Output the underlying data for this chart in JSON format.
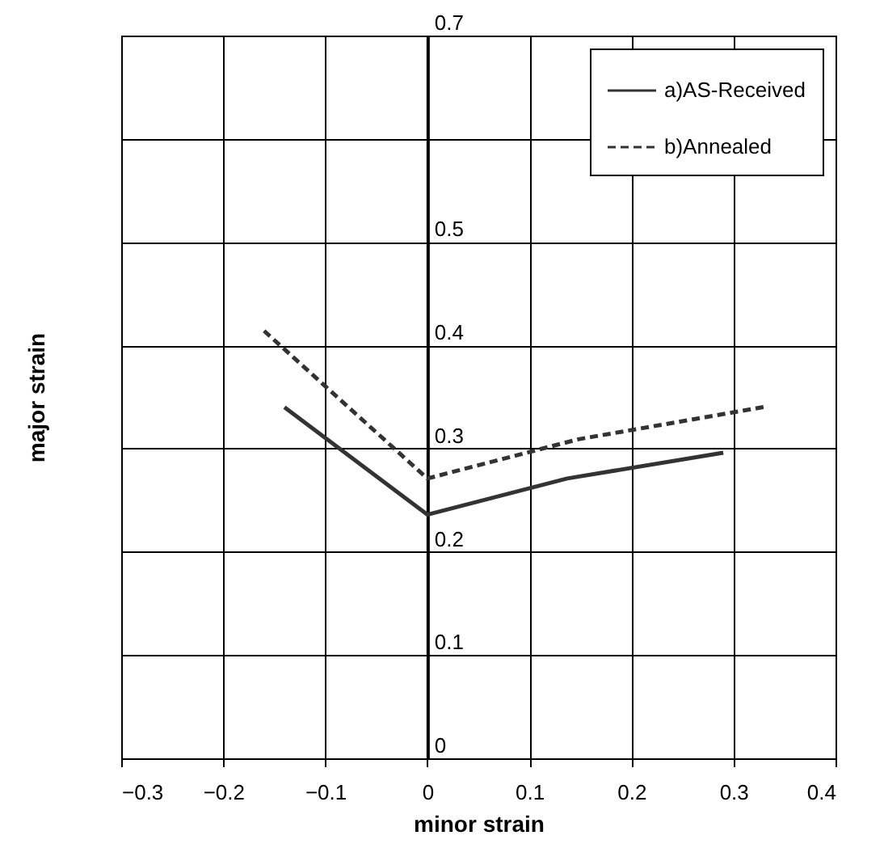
{
  "chart_data": {
    "type": "line",
    "xlabel": "minor strain",
    "ylabel": "major strain",
    "series": [
      {
        "name": "a)AS-Received",
        "color": "#333333",
        "line_style": "solid",
        "x": [
          -0.14,
          0,
          0.137,
          0.29
        ],
        "values": [
          0.34,
          0.236,
          0.271,
          0.296
        ]
      },
      {
        "name": "b)Annealed",
        "color": "#333333",
        "line_style": "dashed",
        "x": [
          -0.16,
          0,
          0.148,
          0.334
        ],
        "values": [
          0.414,
          0.271,
          0.309,
          0.341
        ]
      }
    ],
    "xlim": [
      -0.3,
      0.4
    ],
    "xticks": [
      -0.3,
      -0.2,
      -0.1,
      0,
      0.1,
      0.2,
      0.3,
      0.4
    ],
    "ylim": [
      0,
      0.7
    ],
    "yticks": [
      0,
      0.1,
      0.2,
      0.3,
      0.4,
      0.5,
      {
        "value": 0.6,
        "label": null
      },
      0.7
    ],
    "grid": true,
    "legend": "top right",
    "marker": "none"
  }
}
